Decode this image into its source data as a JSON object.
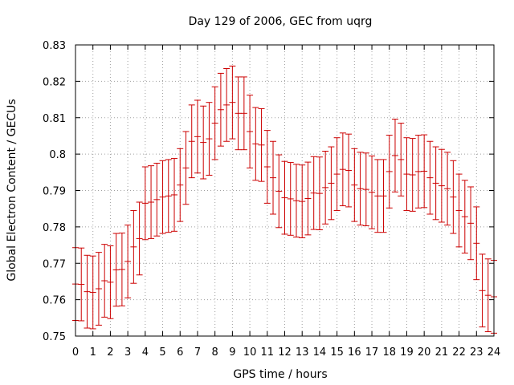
{
  "chart_data": {
    "type": "scatter",
    "title": "Day 129 of 2006, GEC from uqrg",
    "xlabel": "GPS time / hours",
    "ylabel": "Global Electron Content / GECUs",
    "xlim": [
      0,
      24
    ],
    "ylim": [
      0.75,
      0.83
    ],
    "xticks": [
      "0",
      "1",
      "2",
      "3",
      "4",
      "5",
      "6",
      "7",
      "8",
      "9",
      "10",
      "11",
      "12",
      "13",
      "14",
      "15",
      "16",
      "17",
      "18",
      "19",
      "20",
      "21",
      "22",
      "23",
      "24"
    ],
    "yticks": [
      "0.75",
      "0.76",
      "0.77",
      "0.78",
      "0.79",
      "0.8",
      "0.81",
      "0.82",
      "0.83"
    ],
    "grid": true,
    "error_bars": true,
    "series_color": "#cc0000",
    "series": [
      {
        "x": [
          0,
          0.333,
          0.667,
          1,
          1.333,
          1.667,
          2,
          2.333,
          2.667,
          3,
          3.333,
          3.667,
          4,
          4.333,
          4.667,
          5,
          5.333,
          5.667,
          6,
          6.333,
          6.667,
          7,
          7.333,
          7.667,
          8,
          8.333,
          8.667,
          9,
          9.333,
          9.667,
          10,
          10.333,
          10.667,
          11,
          11.333,
          11.667,
          12,
          12.333,
          12.667,
          13,
          13.333,
          13.667,
          14,
          14.333,
          14.667,
          15,
          15.333,
          15.667,
          16,
          16.333,
          16.667,
          17,
          17.333,
          17.667,
          18,
          18.333,
          18.667,
          19,
          19.333,
          19.667,
          20,
          20.333,
          20.667,
          21,
          21.333,
          21.667,
          22,
          22.333,
          22.667,
          23,
          23.333,
          23.667,
          24
        ],
        "y": [
          0.7643,
          0.7642,
          0.7622,
          0.762,
          0.763,
          0.7652,
          0.7648,
          0.7682,
          0.7683,
          0.7705,
          0.7745,
          0.7768,
          0.7865,
          0.7868,
          0.7875,
          0.7882,
          0.7885,
          0.7888,
          0.7915,
          0.7962,
          0.8035,
          0.8048,
          0.8032,
          0.8042,
          0.8085,
          0.8122,
          0.8135,
          0.8142,
          0.8112,
          0.8112,
          0.8062,
          0.8028,
          0.8025,
          0.7965,
          0.7935,
          0.7898,
          0.788,
          0.7877,
          0.7872,
          0.787,
          0.7878,
          0.7893,
          0.7892,
          0.7908,
          0.792,
          0.7945,
          0.7958,
          0.7955,
          0.7915,
          0.7905,
          0.7903,
          0.7895,
          0.7885,
          0.7885,
          0.7952,
          0.7996,
          0.7985,
          0.7945,
          0.7943,
          0.7952,
          0.7953,
          0.7935,
          0.792,
          0.7913,
          0.7905,
          0.7882,
          0.7845,
          0.7828,
          0.781,
          0.7755,
          0.7625,
          0.7612,
          0.7608
        ],
        "err": [
          0.01,
          0.01,
          0.01,
          0.01,
          0.01,
          0.01,
          0.01,
          0.01,
          0.01,
          0.01,
          0.01,
          0.01,
          0.01,
          0.01,
          0.01,
          0.01,
          0.01,
          0.01,
          0.01,
          0.01,
          0.01,
          0.01,
          0.01,
          0.01,
          0.01,
          0.01,
          0.01,
          0.01,
          0.01,
          0.01,
          0.01,
          0.01,
          0.01,
          0.01,
          0.01,
          0.01,
          0.01,
          0.01,
          0.01,
          0.01,
          0.01,
          0.01,
          0.01,
          0.01,
          0.01,
          0.01,
          0.01,
          0.01,
          0.01,
          0.01,
          0.01,
          0.01,
          0.01,
          0.01,
          0.01,
          0.01,
          0.01,
          0.01,
          0.01,
          0.01,
          0.01,
          0.01,
          0.01,
          0.01,
          0.01,
          0.01,
          0.01,
          0.01,
          0.01,
          0.01,
          0.01,
          0.01,
          0.01
        ]
      }
    ]
  }
}
